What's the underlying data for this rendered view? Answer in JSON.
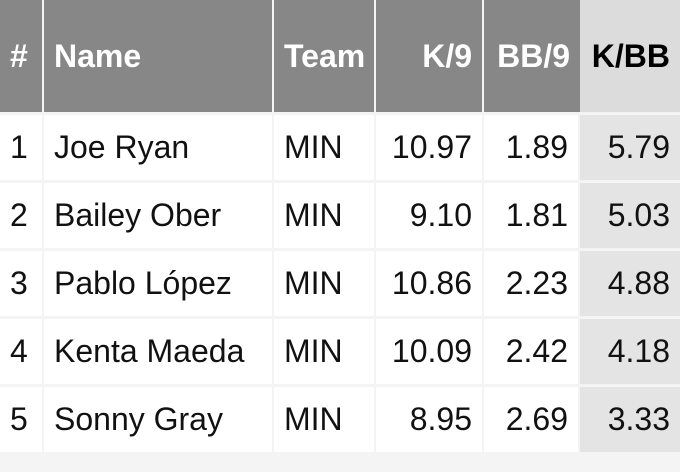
{
  "table": {
    "headers": [
      "#",
      "Name",
      "Team",
      "K/9",
      "BB/9",
      "K/BB"
    ],
    "rows": [
      [
        "1",
        "Joe Ryan",
        "MIN",
        "10.97",
        "1.89",
        "5.79"
      ],
      [
        "2",
        "Bailey Ober",
        "MIN",
        "9.10",
        "1.81",
        "5.03"
      ],
      [
        "3",
        "Pablo López",
        "MIN",
        "10.86",
        "2.23",
        "4.88"
      ],
      [
        "4",
        "Kenta Maeda",
        "MIN",
        "10.09",
        "2.42",
        "4.18"
      ],
      [
        "5",
        "Sonny Gray",
        "MIN",
        "8.95",
        "2.69",
        "3.33"
      ]
    ]
  }
}
